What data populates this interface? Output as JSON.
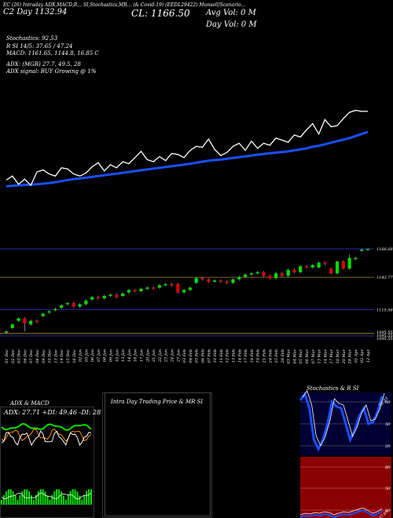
{
  "header": {
    "topline": "EC (26) Intraday ADX,MACD,R... SI,Stochastics,MR... (& Covid-19) (EEDL29422) Munsell/Scenario...",
    "symbol": "EEDL29422",
    "chart_date": "12 Apr",
    "day_label": "C2 Day",
    "open_value": "1132.94",
    "close_label": "CL: 1166.50",
    "avg_vol": "Avg Vol: 0   M",
    "day_vol": "Day Vol: 0   M",
    "stoch_line": "Stochastics: 92.53",
    "rsi_line": "R     SI 14/5: 37.65 / 47.24",
    "macd_line": "MACD: 1161.65, 1144.8, 16.85 C",
    "adx_line": "ADX:                 (MGR) 27.7, 49.5, 28",
    "adx_signal_line": "ADX  signal:                        BUY Growing @ 1%"
  },
  "price_levels": [
    "1166.68",
    "1142.77",
    "1115.56",
    "1095.55",
    "1095.55",
    "1095.55"
  ],
  "bottom_panels": {
    "adx_title": "ADX  & MACD",
    "adx_values": "ADX: 27.71 +DI: 49.46 -DI: 28",
    "intraday_title": "Intra  Day Trading Price  & MR                SI",
    "stoch_title": "Stochastics & R                SI",
    "stoch_levels": [
      "80",
      "50",
      "20"
    ],
    "rsi_levels": [
      "80",
      "50",
      "20"
    ],
    "stoch_badge": "92.53",
    "rsi_badge": "37.65"
  },
  "colors": {
    "up": "#00dd00",
    "down": "#dd0000",
    "ema": "#1a4fff",
    "price": "#ffffff",
    "level_line": "#7a6418",
    "rsi_panel": "#8b0000"
  },
  "chart_data": {
    "type": "candlestick",
    "x": [
      "Dec",
      "Dec",
      "Dec",
      "Dec",
      "Dec",
      "Dec",
      "Dec",
      "Dec",
      "Dec",
      "Dec",
      "Dec",
      "Dec",
      "Jan",
      "Jan",
      "Jan",
      "Jan",
      "Jan",
      "Jan",
      "Jan",
      "Jan",
      "Jan",
      "Jan",
      "Jan",
      "Jan",
      "Jan",
      "Jan",
      "Jan",
      "Jan",
      "Jan",
      "Feb",
      "Feb",
      "Feb",
      "Feb",
      "Feb",
      "Feb",
      "Feb",
      "Feb",
      "Feb",
      "Feb",
      "Feb",
      "Feb",
      "Feb",
      "Feb",
      "Feb",
      "Feb",
      "Feb",
      "Mar",
      "Mar",
      "Mar",
      "Mar",
      "Mar",
      "Mar",
      "Mar",
      "Mar",
      "Mar",
      "Mar",
      "Mar",
      "Apr",
      "Apr",
      "Apr"
    ],
    "x_days": [
      "01",
      "02",
      "03",
      "06",
      "07",
      "08",
      "09",
      "10",
      "13",
      "14",
      "15",
      "16",
      "02",
      "03",
      "06",
      "07",
      "08",
      "09",
      "10",
      "13",
      "14",
      "16",
      "17",
      "20",
      "21",
      "22",
      "23",
      "24",
      "27",
      "03",
      "04",
      "05",
      "06",
      "07",
      "10",
      "11",
      "12",
      "13",
      "14",
      "17",
      "18",
      "19",
      "21",
      "24",
      "25",
      "26",
      "03",
      "04",
      "05",
      "06",
      "07",
      "13",
      "14",
      "17",
      "18",
      "20",
      "28",
      "01",
      "02",
      "12"
    ],
    "candles": [
      {
        "o": 1096,
        "c": 1097,
        "h": 1098,
        "l": 1095
      },
      {
        "o": 1100,
        "c": 1103,
        "h": 1104,
        "l": 1099
      },
      {
        "o": 1106,
        "c": 1108,
        "h": 1109,
        "l": 1105
      },
      {
        "o": 1108,
        "c": 1104,
        "h": 1109,
        "l": 1097
      },
      {
        "o": 1103,
        "c": 1106,
        "h": 1107,
        "l": 1102
      },
      {
        "o": 1106,
        "c": 1105,
        "h": 1107,
        "l": 1104
      },
      {
        "o": 1110,
        "c": 1112,
        "h": 1113,
        "l": 1109
      },
      {
        "o": 1113,
        "c": 1114,
        "h": 1115,
        "l": 1112
      },
      {
        "o": 1115,
        "c": 1116,
        "h": 1117,
        "l": 1114
      },
      {
        "o": 1117,
        "c": 1119,
        "h": 1120,
        "l": 1116
      },
      {
        "o": 1120,
        "c": 1121,
        "h": 1122,
        "l": 1119
      },
      {
        "o": 1121,
        "c": 1118,
        "h": 1122,
        "l": 1117
      },
      {
        "o": 1118,
        "c": 1120,
        "h": 1121,
        "l": 1117
      },
      {
        "o": 1120,
        "c": 1123,
        "h": 1124,
        "l": 1119
      },
      {
        "o": 1124,
        "c": 1126,
        "h": 1127,
        "l": 1123
      },
      {
        "o": 1126,
        "c": 1125,
        "h": 1127,
        "l": 1124
      },
      {
        "o": 1125,
        "c": 1127,
        "h": 1128,
        "l": 1124
      },
      {
        "o": 1127,
        "c": 1128,
        "h": 1129,
        "l": 1126
      },
      {
        "o": 1128,
        "c": 1126,
        "h": 1129,
        "l": 1125
      },
      {
        "o": 1127,
        "c": 1129,
        "h": 1130,
        "l": 1126
      },
      {
        "o": 1130,
        "c": 1132,
        "h": 1133,
        "l": 1129
      },
      {
        "o": 1132,
        "c": 1131,
        "h": 1133,
        "l": 1130
      },
      {
        "o": 1131,
        "c": 1133,
        "h": 1134,
        "l": 1130
      },
      {
        "o": 1133,
        "c": 1134,
        "h": 1135,
        "l": 1132
      },
      {
        "o": 1134,
        "c": 1133,
        "h": 1135,
        "l": 1132
      },
      {
        "o": 1134,
        "c": 1136,
        "h": 1137,
        "l": 1133
      },
      {
        "o": 1136,
        "c": 1137,
        "h": 1138,
        "l": 1135
      },
      {
        "o": 1137,
        "c": 1136,
        "h": 1138,
        "l": 1135
      },
      {
        "o": 1137,
        "c": 1130,
        "h": 1138,
        "l": 1129
      },
      {
        "o": 1130,
        "c": 1132,
        "h": 1133,
        "l": 1129
      },
      {
        "o": 1132,
        "c": 1134,
        "h": 1135,
        "l": 1131
      },
      {
        "o": 1138,
        "c": 1142,
        "h": 1143,
        "l": 1137
      },
      {
        "o": 1142,
        "c": 1141,
        "h": 1143,
        "l": 1140
      },
      {
        "o": 1141,
        "c": 1139,
        "h": 1142,
        "l": 1138
      },
      {
        "o": 1139,
        "c": 1140,
        "h": 1141,
        "l": 1138
      },
      {
        "o": 1140,
        "c": 1139,
        "h": 1141,
        "l": 1138
      },
      {
        "o": 1139,
        "c": 1138,
        "h": 1140,
        "l": 1137
      },
      {
        "o": 1138,
        "c": 1141,
        "h": 1142,
        "l": 1137
      },
      {
        "o": 1141,
        "c": 1143,
        "h": 1144,
        "l": 1140
      },
      {
        "o": 1143,
        "c": 1145,
        "h": 1146,
        "l": 1142
      },
      {
        "o": 1145,
        "c": 1146,
        "h": 1147,
        "l": 1144
      },
      {
        "o": 1146,
        "c": 1147,
        "h": 1148,
        "l": 1145
      },
      {
        "o": 1147,
        "c": 1144,
        "h": 1148,
        "l": 1143
      },
      {
        "o": 1144,
        "c": 1142,
        "h": 1145,
        "l": 1141
      },
      {
        "o": 1142,
        "c": 1146,
        "h": 1147,
        "l": 1141
      },
      {
        "o": 1146,
        "c": 1144,
        "h": 1147,
        "l": 1143
      },
      {
        "o": 1144,
        "c": 1149,
        "h": 1150,
        "l": 1143
      },
      {
        "o": 1149,
        "c": 1147,
        "h": 1150,
        "l": 1146
      },
      {
        "o": 1147,
        "c": 1152,
        "h": 1153,
        "l": 1146
      },
      {
        "o": 1152,
        "c": 1151,
        "h": 1153,
        "l": 1150
      },
      {
        "o": 1151,
        "c": 1153,
        "h": 1154,
        "l": 1150
      },
      {
        "o": 1151,
        "c": 1155,
        "h": 1156,
        "l": 1150
      },
      {
        "o": 1155,
        "c": 1154,
        "h": 1156,
        "l": 1153
      },
      {
        "o": 1150,
        "c": 1146,
        "h": 1151,
        "l": 1145
      },
      {
        "o": 1146,
        "c": 1156,
        "h": 1157,
        "l": 1145
      },
      {
        "o": 1156,
        "c": 1150,
        "h": 1157,
        "l": 1149
      },
      {
        "o": 1150,
        "c": 1159,
        "h": 1162,
        "l": 1149
      },
      {
        "o": 1158,
        "c": 1159,
        "h": 1160,
        "l": 1157
      },
      {
        "o": 1165,
        "c": 1166,
        "h": 1167,
        "l": 1164
      },
      {
        "o": 1166,
        "c": 1166.5,
        "h": 1167,
        "l": 1165
      }
    ],
    "close_line": [
      1108,
      1112,
      1104,
      1109,
      1103,
      1116,
      1118,
      1114,
      1112,
      1120,
      1119,
      1114,
      1112,
      1115,
      1121,
      1125,
      1117,
      1123,
      1120,
      1126,
      1124,
      1130,
      1136,
      1128,
      1126,
      1131,
      1127,
      1134,
      1133,
      1130,
      1137,
      1141,
      1140,
      1148,
      1138,
      1132,
      1135,
      1141,
      1144,
      1137,
      1146,
      1139,
      1144,
      1142,
      1149,
      1147,
      1145,
      1152,
      1150,
      1157,
      1163,
      1153,
      1167,
      1160,
      1161,
      1168,
      1174,
      1176,
      1175,
      1175
    ],
    "ema_line": [
      1102,
      1102.5,
      1103,
      1103.4,
      1103.7,
      1104,
      1104.6,
      1105.2,
      1106,
      1107,
      1108.2,
      1109,
      1109.6,
      1110.4,
      1111.2,
      1112,
      1112.8,
      1113.6,
      1114.4,
      1115.2,
      1116,
      1116.8,
      1117.6,
      1118.4,
      1119.2,
      1120,
      1120.8,
      1121.6,
      1122.4,
      1123.2,
      1124,
      1125,
      1126,
      1127,
      1127.6,
      1128,
      1128.8,
      1129.6,
      1130.4,
      1131.2,
      1132,
      1132.8,
      1133.6,
      1134.2,
      1134.8,
      1135.4,
      1136,
      1137,
      1138,
      1139,
      1140.5,
      1141.5,
      1143,
      1144.5,
      1146,
      1147.5,
      1149,
      1151,
      1153,
      1155
    ],
    "ylim_price": [
      1092,
      1170
    ],
    "reference_levels": [
      1166.68,
      1142.77,
      1115.56,
      1095.55
    ],
    "adx": {
      "adx": 27.71,
      "plus_di": 49.46,
      "minus_di": 28
    },
    "stochastics": 92.53,
    "rsi": [
      37.65,
      47.24
    ],
    "macd": [
      1161.65,
      1144.8,
      16.85
    ]
  }
}
